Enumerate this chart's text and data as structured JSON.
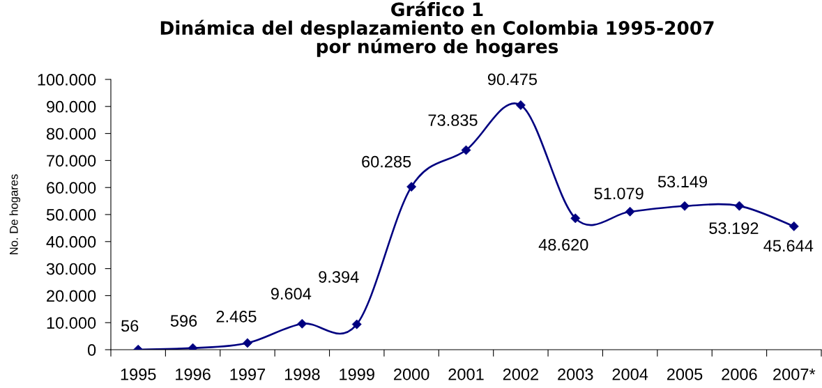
{
  "chart_data": {
    "type": "line",
    "title": "Gráfico 1\nDinámica del desplazamiento en Colombia 1995-2007\npor número de hogares",
    "ylabel": "No. De hogares",
    "categories": [
      "1995",
      "1996",
      "1997",
      "1998",
      "1999",
      "2000",
      "2001",
      "2002",
      "2003",
      "2004",
      "2005",
      "2006",
      "2007*"
    ],
    "series": [
      {
        "color": "#000080",
        "values": [
          56,
          596,
          2465,
          9604,
          9394,
          60285,
          73835,
          90475,
          48620,
          51079,
          53149,
          53192,
          45644
        ],
        "value_labels": [
          "56",
          "596",
          "2.465",
          "9.604",
          "9.394",
          "60.285",
          "73.835",
          "90.475",
          "48.620",
          "51.079",
          "53.149",
          "53.192",
          "45.644"
        ]
      }
    ],
    "ylim": [
      0,
      100000
    ],
    "yticks": [
      0,
      {
        "value": 10000,
        "label": "10.000"
      },
      {
        "value": 20000,
        "label": "20.000"
      },
      {
        "value": 30000,
        "label": "30.000"
      },
      {
        "value": 40000,
        "label": "40.000"
      },
      {
        "value": 50000,
        "label": "50.000"
      },
      {
        "value": 60000,
        "label": "60.000"
      },
      {
        "value": 70000,
        "label": "70.000"
      },
      {
        "value": 80000,
        "label": "80.000"
      },
      {
        "value": 90000,
        "label": "90.000"
      },
      {
        "value": 100000,
        "label": "100.000"
      }
    ],
    "grid": false,
    "marker": "diamond",
    "line_style": "solid"
  }
}
